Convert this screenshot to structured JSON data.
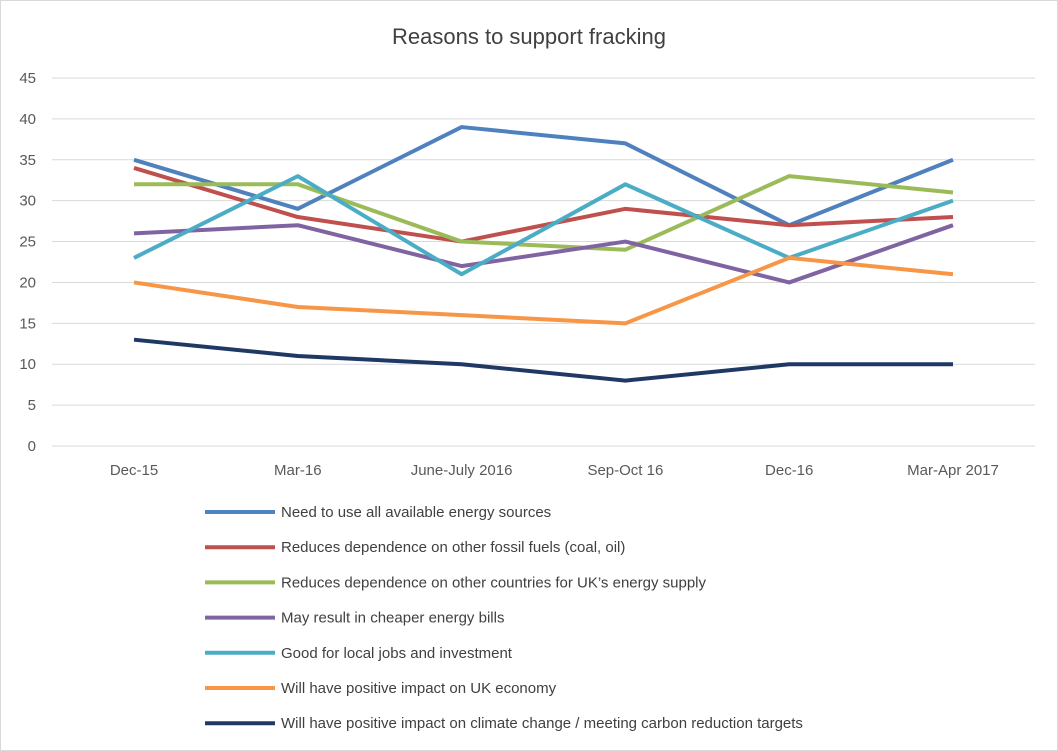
{
  "chart_data": {
    "type": "line",
    "title": "Reasons to support fracking",
    "xlabel": "",
    "ylabel": "",
    "categories": [
      "Dec-15",
      "Mar-16",
      "June-July 2016",
      "Sep-Oct 16",
      "Dec-16",
      "Mar-Apr 2017"
    ],
    "ylim": [
      0,
      45
    ],
    "yticks": [
      0,
      5,
      10,
      15,
      20,
      25,
      30,
      35,
      40,
      45
    ],
    "grid": true,
    "legend_position": "bottom",
    "series": [
      {
        "name": "Need to use all available energy sources",
        "color": "#4f81bd",
        "values": [
          35,
          29,
          39,
          37,
          27,
          35
        ]
      },
      {
        "name": "Reduces dependence on other fossil fuels (coal, oil)",
        "color": "#c0504d",
        "values": [
          34,
          28,
          25,
          29,
          27,
          28
        ]
      },
      {
        "name": "Reduces dependence on other countries for UK’s energy supply",
        "color": "#9bbb59",
        "values": [
          32,
          32,
          25,
          24,
          33,
          31
        ]
      },
      {
        "name": "May result in cheaper energy bills",
        "color": "#8064a2",
        "values": [
          26,
          27,
          22,
          25,
          20,
          27
        ]
      },
      {
        "name": "Good for local jobs and investment",
        "color": "#4bacc6",
        "values": [
          23,
          33,
          21,
          32,
          23,
          30
        ]
      },
      {
        "name": "Will have positive impact on UK economy",
        "color": "#f79646",
        "values": [
          20,
          17,
          16,
          15,
          23,
          21
        ]
      },
      {
        "name": "Will have positive impact on climate change / meeting carbon reduction targets",
        "color": "#1f3864",
        "values": [
          13,
          11,
          10,
          8,
          10,
          10
        ]
      }
    ]
  }
}
